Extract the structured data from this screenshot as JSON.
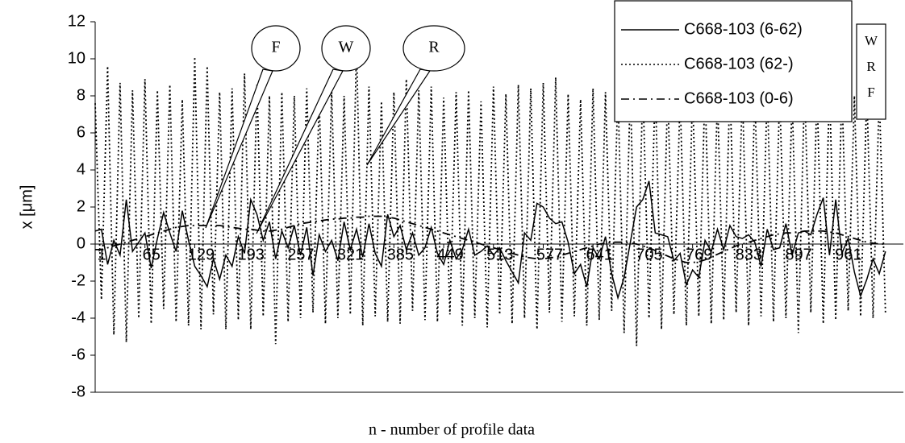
{
  "chart_data": {
    "type": "line",
    "y_label": "x [μm]",
    "x_label": "n - number of profile data",
    "annotations": [
      "F",
      "W",
      "R"
    ],
    "side_box": [
      "W",
      "R",
      "F"
    ],
    "legend": "top-right",
    "xlim": [
      1,
      1040
    ],
    "xticks": [
      1,
      65,
      129,
      193,
      257,
      321,
      385,
      449,
      513,
      577,
      641,
      705,
      769,
      833,
      897,
      961
    ],
    "ylim": [
      -8,
      12
    ],
    "yticks": [
      -8,
      -6,
      -4,
      -2,
      0,
      2,
      4,
      6,
      8,
      10,
      12
    ],
    "x": [
      1,
      9,
      17,
      25,
      33,
      41,
      49,
      57,
      65,
      73,
      81,
      89,
      97,
      105,
      113,
      121,
      129,
      137,
      145,
      153,
      161,
      169,
      177,
      185,
      193,
      201,
      209,
      217,
      225,
      233,
      241,
      249,
      257,
      265,
      273,
      281,
      289,
      297,
      305,
      313,
      321,
      329,
      337,
      345,
      353,
      361,
      369,
      377,
      385,
      393,
      401,
      409,
      417,
      425,
      433,
      441,
      449,
      457,
      465,
      473,
      481,
      489,
      497,
      505,
      513,
      521,
      529,
      537,
      545,
      553,
      561,
      569,
      577,
      585,
      593,
      601,
      609,
      617,
      625,
      633,
      641,
      649,
      657,
      665,
      673,
      681,
      689,
      697,
      705,
      713,
      721,
      729,
      737,
      745,
      753,
      761,
      769,
      777,
      785,
      793,
      801,
      809,
      817,
      825,
      833,
      841,
      849,
      857,
      865,
      873,
      881,
      889,
      897,
      905,
      913,
      921,
      929,
      937,
      945,
      953,
      961,
      969,
      977,
      985,
      993,
      1001,
      1009,
      1017
    ],
    "series": [
      {
        "name": "C668-103 (6-62)",
        "color": "#000000",
        "style": "solid",
        "values": [
          0.7,
          0.8,
          -1.1,
          0.2,
          -0.6,
          2.4,
          -0.4,
          0.1,
          0.6,
          -1.3,
          0.3,
          1.7,
          0.6,
          -0.4,
          1.8,
          0.2,
          -1.2,
          -1.7,
          -2.3,
          -0.8,
          -1.9,
          -0.6,
          -1.2,
          0.4,
          -0.5,
          2.4,
          1.6,
          0.2,
          1.2,
          -0.8,
          0.7,
          -0.2,
          1.0,
          -0.6,
          0.9,
          -1.7,
          0.5,
          -0.4,
          0.2,
          -0.9,
          1.2,
          -0.3,
          0.8,
          -0.7,
          1.1,
          -0.5,
          -1.2,
          1.6,
          0.4,
          1.0,
          -0.3,
          0.6,
          -0.6,
          -0.2,
          0.9,
          -0.5,
          -1.1,
          0.2,
          -0.8,
          -0.3,
          0.8,
          -0.6,
          -0.4,
          -0.1,
          -0.6,
          -0.2,
          -0.9,
          -1.5,
          -2.1,
          0.6,
          0.2,
          2.2,
          2.0,
          1.4,
          1.1,
          1.2,
          0.1,
          -1.6,
          -1.1,
          -2.3,
          -0.2,
          -0.8,
          0.4,
          -1.6,
          -2.9,
          -1.8,
          0.1,
          2.0,
          2.4,
          3.4,
          0.6,
          0.5,
          0.4,
          -0.9,
          -0.5,
          -2.2,
          -1.4,
          -1.8,
          0.2,
          -0.4,
          0.8,
          -0.3,
          1.0,
          0.4,
          0.3,
          0.5,
          0.1,
          -1.2,
          0.8,
          -0.3,
          -0.2,
          1.1,
          -0.6,
          0.6,
          0.7,
          0.5,
          1.6,
          2.5,
          -0.6,
          2.4,
          -0.5,
          0.3,
          -1.5,
          -2.8,
          -1.9,
          -0.8,
          -1.6,
          -0.4
        ]
      },
      {
        "name": "C668-103 (62-)",
        "color": "#000000",
        "style": "dotted",
        "values": [
          7.6,
          -3.0,
          9.6,
          -4.9,
          8.7,
          -5.3,
          8.3,
          -4.0,
          8.9,
          -4.3,
          8.3,
          -3.5,
          8.6,
          -4.2,
          7.8,
          -4.4,
          10.1,
          -4.6,
          9.6,
          -3.8,
          8.2,
          -4.6,
          8.4,
          -4.1,
          9.2,
          -4.6,
          8.6,
          -3.9,
          8.0,
          -5.4,
          8.2,
          -4.2,
          8.0,
          -4.0,
          8.4,
          -3.7,
          7.8,
          -4.3,
          8.3,
          -4.0,
          8.0,
          -3.8,
          10.6,
          -4.4,
          8.5,
          -3.9,
          7.7,
          -4.2,
          8.2,
          -4.3,
          8.9,
          -3.6,
          8.3,
          -4.1,
          8.5,
          -4.2,
          7.9,
          -3.8,
          8.2,
          -4.4,
          8.3,
          -4.0,
          7.7,
          -4.5,
          8.5,
          -3.8,
          8.1,
          -4.3,
          8.6,
          -4.0,
          8.4,
          -4.6,
          8.7,
          -3.7,
          9.0,
          -4.2,
          8.1,
          -3.9,
          7.8,
          -4.4,
          8.4,
          -4.1,
          8.2,
          -3.6,
          8.3,
          -4.8,
          8.5,
          -5.5,
          8.7,
          -4.0,
          8.6,
          -4.6,
          8.3,
          -3.8,
          8.0,
          -4.4,
          8.2,
          -3.9,
          8.5,
          -4.3,
          8.0,
          -4.1,
          8.6,
          -3.7,
          8.3,
          -4.4,
          8.1,
          -3.9,
          8.4,
          -4.2,
          8.2,
          -4.0,
          7.9,
          -4.8,
          8.6,
          -3.7,
          8.2,
          -4.3,
          8.5,
          -4.1,
          8.3,
          -3.6,
          8.0,
          -3.9,
          8.2,
          -4.0,
          8.1,
          -3.8
        ]
      },
      {
        "name": "C668-103 (0-6)",
        "color": "#000000",
        "style": "dashdot",
        "values": [
          -0.3,
          -0.3,
          -0.2,
          -0.1,
          0.0,
          0.1,
          0.2,
          0.3,
          0.4,
          0.5,
          0.6,
          0.7,
          0.8,
          0.9,
          0.95,
          1.0,
          1.0,
          1.0,
          1.0,
          1.0,
          1.0,
          0.95,
          0.9,
          0.85,
          0.8,
          0.8,
          0.75,
          0.7,
          0.7,
          0.75,
          0.8,
          0.9,
          1.0,
          1.1,
          1.15,
          1.2,
          1.25,
          1.3,
          1.35,
          1.35,
          1.4,
          1.4,
          1.45,
          1.45,
          1.5,
          1.5,
          1.5,
          1.45,
          1.4,
          1.3,
          1.2,
          1.1,
          1.0,
          0.9,
          0.8,
          0.7,
          0.6,
          0.5,
          0.4,
          0.3,
          0.2,
          0.1,
          0.0,
          -0.1,
          -0.2,
          -0.3,
          -0.4,
          -0.5,
          -0.6,
          -0.7,
          -0.75,
          -0.8,
          -0.8,
          -0.75,
          -0.7,
          -0.6,
          -0.5,
          -0.4,
          -0.3,
          -0.2,
          -0.1,
          0.0,
          0.05,
          0.1,
          0.1,
          0.1,
          0.05,
          0.0,
          -0.1,
          -0.2,
          -0.35,
          -0.5,
          -0.65,
          -0.8,
          -0.9,
          -1.0,
          -1.0,
          -0.95,
          -0.85,
          -0.7,
          -0.55,
          -0.4,
          -0.25,
          -0.1,
          0.0,
          0.1,
          0.2,
          0.3,
          0.4,
          0.5,
          0.55,
          0.6,
          0.6,
          0.65,
          0.7,
          0.7,
          0.7,
          0.7,
          0.65,
          0.6,
          0.5,
          0.4,
          0.3,
          0.2,
          0.1,
          0.05,
          0.0,
          0.0
        ]
      }
    ]
  }
}
